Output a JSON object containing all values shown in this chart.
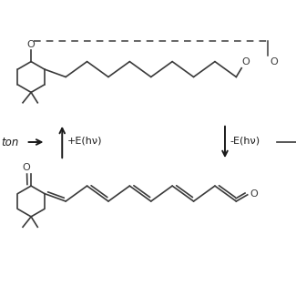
{
  "line_color": "#3a3a3a",
  "arrow_color": "#1a1a1a",
  "text_color": "#1a1a1a",
  "label_up": "+E(hν)",
  "label_down": "-E(hν)",
  "label_left": "ton",
  "fig_width": 3.25,
  "fig_height": 3.25,
  "dpi": 100,
  "xlim": [
    0,
    10
  ],
  "ylim": [
    0,
    10
  ]
}
